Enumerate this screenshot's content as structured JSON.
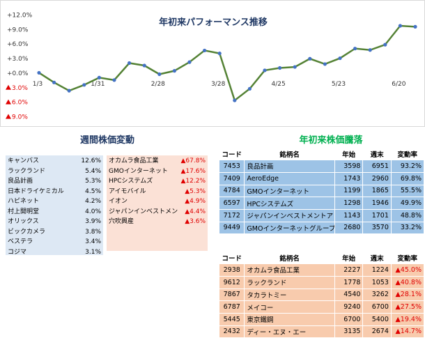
{
  "chart_data": {
    "type": "line",
    "title": "年初来パフォーマンス推移",
    "x_tick_labels": [
      "1/3",
      "1/31",
      "2/28",
      "3/28",
      "4/25",
      "5/23",
      "6/20"
    ],
    "x_tick_index": [
      0,
      4,
      8,
      12,
      16,
      20,
      24
    ],
    "y_ticks": [
      {
        "value": 12,
        "label": "+12.0%"
      },
      {
        "value": 9,
        "label": "+9.0%"
      },
      {
        "value": 6,
        "label": "+6.0%"
      },
      {
        "value": 3,
        "label": "+3.0%"
      },
      {
        "value": 0,
        "label": "+0.0%"
      },
      {
        "value": -3,
        "label": "3.0%"
      },
      {
        "value": -6,
        "label": "6.0%"
      },
      {
        "value": -9,
        "label": "9.0%"
      }
    ],
    "ylim": [
      -9,
      12
    ],
    "grid": false,
    "series": [
      {
        "color": "#548235",
        "marker_color": "#4472c4",
        "values": [
          0.0,
          -2.0,
          -3.7,
          -2.5,
          -1.0,
          -1.5,
          2.0,
          1.5,
          -0.3,
          0.4,
          2.2,
          4.6,
          4.0,
          -5.7,
          -3.3,
          0.5,
          1.0,
          1.2,
          2.9,
          1.8,
          3.0,
          5.0,
          4.7,
          5.8,
          9.7,
          9.5
        ]
      }
    ]
  },
  "weekly": {
    "title": "週間株価変動",
    "gainers": [
      {
        "name": "キャンバス",
        "change": "12.6%"
      },
      {
        "name": "ラックランド",
        "change": "5.4%"
      },
      {
        "name": "良品計画",
        "change": "5.3%"
      },
      {
        "name": "日本ドライケミカル",
        "change": "4.5%"
      },
      {
        "name": "ハピネット",
        "change": "4.2%"
      },
      {
        "name": "村上開明堂",
        "change": "4.0%"
      },
      {
        "name": "オリックス",
        "change": "3.9%"
      },
      {
        "name": "ビックカメラ",
        "change": "3.8%"
      },
      {
        "name": "ベステラ",
        "change": "3.4%"
      },
      {
        "name": "コジマ",
        "change": "3.1%"
      }
    ],
    "losers": [
      {
        "name": "オカムラ食品工業",
        "change": "▲67.8%"
      },
      {
        "name": "GMOインターネット",
        "change": "▲17.6%"
      },
      {
        "name": "HPCシステムズ",
        "change": "▲12.2%"
      },
      {
        "name": "アイモバイル",
        "change": "▲5.3%"
      },
      {
        "name": "イオン",
        "change": "▲4.9%"
      },
      {
        "name": "ジャパンインベストメン",
        "change": "▲4.4%"
      },
      {
        "name": "穴吹興産",
        "change": "▲3.6%"
      }
    ]
  },
  "ytd": {
    "title": "年初来株価騰落",
    "headers": {
      "code": "コード",
      "name": "銘柄名",
      "start": "年始",
      "end": "週末",
      "rate": "変動率"
    },
    "rise": [
      {
        "code": "7453",
        "name": "良品計画",
        "start": "3598",
        "end": "6951",
        "rate": "93.2%"
      },
      {
        "code": "7409",
        "name": "AeroEdge",
        "start": "1743",
        "end": "2960",
        "rate": "69.8%"
      },
      {
        "code": "4784",
        "name": "GMOインターネット",
        "start": "1199",
        "end": "1865",
        "rate": "55.5%"
      },
      {
        "code": "6597",
        "name": "HPCシステムズ",
        "start": "1298",
        "end": "1946",
        "rate": "49.9%"
      },
      {
        "code": "7172",
        "name": "ジャパンインベストメントアドバイザ",
        "start": "1143",
        "end": "1701",
        "rate": "48.8%"
      },
      {
        "code": "9449",
        "name": "GMOインターネットグループ",
        "start": "2680",
        "end": "3570",
        "rate": "33.2%"
      }
    ],
    "fall": [
      {
        "code": "2938",
        "name": "オカムラ食品工業",
        "start": "2227",
        "end": "1224",
        "rate": "▲45.0%"
      },
      {
        "code": "9612",
        "name": "ラックランド",
        "start": "1778",
        "end": "1053",
        "rate": "▲40.8%"
      },
      {
        "code": "7867",
        "name": "タカラトミー",
        "start": "4540",
        "end": "3262",
        "rate": "▲28.1%"
      },
      {
        "code": "6787",
        "name": "メイコー",
        "start": "9240",
        "end": "6700",
        "rate": "▲27.5%"
      },
      {
        "code": "5445",
        "name": "東京鐵鋼",
        "start": "6700",
        "end": "5400",
        "rate": "▲19.4%"
      },
      {
        "code": "2432",
        "name": "ディー・エヌ・エー",
        "start": "3135",
        "end": "2674",
        "rate": "▲14.7%"
      }
    ]
  }
}
